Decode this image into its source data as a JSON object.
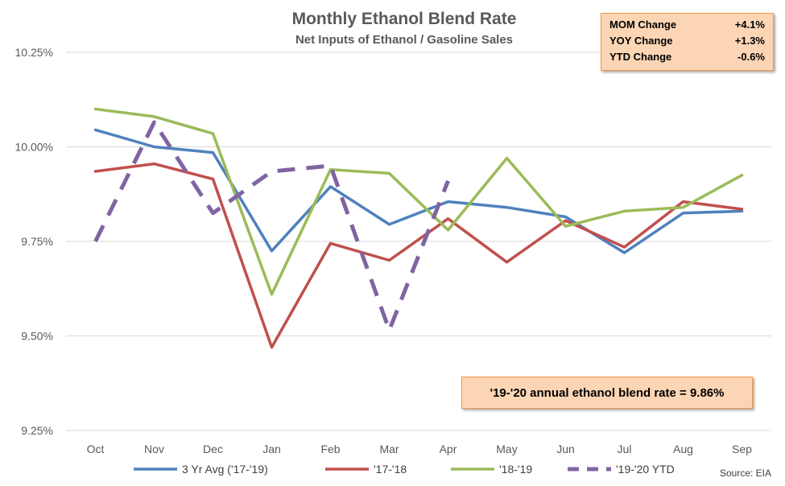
{
  "chart_data": {
    "type": "line",
    "title": "Monthly Ethanol Blend Rate",
    "subtitle": "Net Inputs of Ethanol / Gasoline Sales",
    "categories": [
      "Oct",
      "Nov",
      "Dec",
      "Jan",
      "Feb",
      "Mar",
      "Apr",
      "May",
      "Jun",
      "Jul",
      "Aug",
      "Sep"
    ],
    "ylim": [
      9.25,
      10.25
    ],
    "yticks": [
      "9.25%",
      "9.50%",
      "9.75%",
      "10.00%",
      "10.25%"
    ],
    "ytick_values": [
      9.25,
      9.5,
      9.75,
      10.0,
      10.25
    ],
    "grid": true,
    "legend_position": "bottom",
    "series": [
      {
        "name": "3 Yr Avg ('17-'19)",
        "color": "#4f81bd",
        "dashed": false,
        "values": [
          10.045,
          10.0,
          9.985,
          9.725,
          9.895,
          9.795,
          9.855,
          9.84,
          9.815,
          9.72,
          9.825,
          9.83
        ]
      },
      {
        "name": "'17-'18",
        "color": "#c0504d",
        "dashed": false,
        "values": [
          9.935,
          9.955,
          9.915,
          9.47,
          9.745,
          9.7,
          9.81,
          9.695,
          9.805,
          9.735,
          9.855,
          9.835
        ]
      },
      {
        "name": "'18-'19",
        "color": "#9bbb59",
        "dashed": false,
        "values": [
          10.1,
          10.08,
          10.035,
          9.61,
          9.94,
          9.93,
          9.78,
          9.97,
          9.79,
          9.83,
          9.84,
          9.925
        ]
      },
      {
        "name": "'19-'20 YTD",
        "color": "#8064a2",
        "dashed": true,
        "values": [
          9.75,
          10.065,
          9.825,
          9.935,
          9.95,
          9.515,
          9.91,
          null,
          null,
          null,
          null,
          null
        ]
      }
    ]
  },
  "stats_box": {
    "rows": [
      {
        "label": "MOM Change",
        "value": "+4.1%"
      },
      {
        "label": "YOY Change",
        "value": "+1.3%"
      },
      {
        "label": "YTD Change",
        "value": "-0.6%"
      }
    ]
  },
  "annotation": "'19-'20 annual ethanol blend rate = 9.86%",
  "source": "Source: EIA",
  "colors": {
    "stats_fill": "#fcd5b4",
    "stats_border": "#f79646",
    "grid": "#d9d9d9"
  }
}
